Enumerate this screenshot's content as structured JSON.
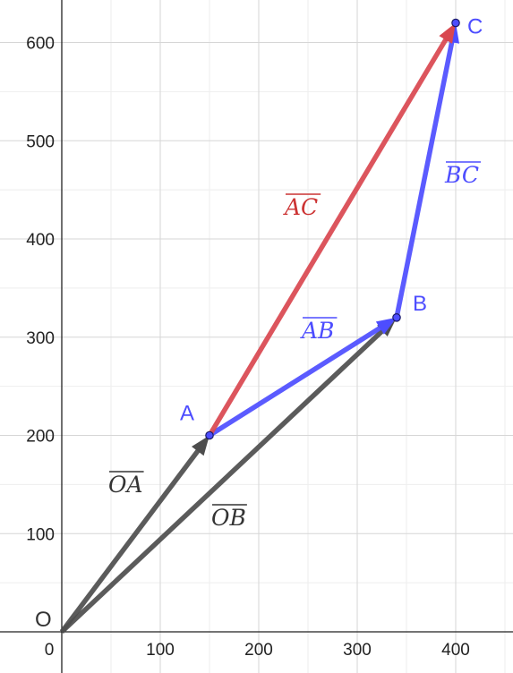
{
  "axes": {
    "x_ticks": [
      "0",
      "100",
      "200",
      "300",
      "400"
    ],
    "y_ticks": [
      "100",
      "200",
      "300",
      "400",
      "500",
      "600"
    ],
    "x_minor_ticks": [
      50,
      150,
      250,
      350,
      450
    ],
    "y_minor_ticks": [
      50,
      150,
      250,
      350,
      450,
      550
    ]
  },
  "colors": {
    "black_vector": "#4d4d4d",
    "blue_vector": "#4d4dff",
    "red_vector": "#d9474f",
    "point_fill": "#4d4dff",
    "blue_text": "#4d4dff",
    "red_text": "#cc3333",
    "dark_text": "#333333"
  },
  "points": [
    {
      "id": "O",
      "label": "O",
      "x": 0,
      "y": 0,
      "show_dot": false
    },
    {
      "id": "A",
      "label": "A",
      "x": 150,
      "y": 200,
      "show_dot": true
    },
    {
      "id": "B",
      "label": "B",
      "x": 340,
      "y": 320,
      "show_dot": true
    },
    {
      "id": "C",
      "label": "C",
      "x": 400,
      "y": 620,
      "show_dot": true
    }
  ],
  "vectors": [
    {
      "id": "OA",
      "from": "O",
      "to": "A",
      "color": "black_vector",
      "label": "OA"
    },
    {
      "id": "OB",
      "from": "O",
      "to": "B",
      "color": "black_vector",
      "label": "OB"
    },
    {
      "id": "AB",
      "from": "A",
      "to": "B",
      "color": "blue_vector",
      "label": "AB"
    },
    {
      "id": "BC",
      "from": "B",
      "to": "C",
      "color": "blue_vector",
      "label": "BC"
    },
    {
      "id": "AC",
      "from": "A",
      "to": "C",
      "color": "red_vector",
      "label": "AC"
    }
  ]
}
